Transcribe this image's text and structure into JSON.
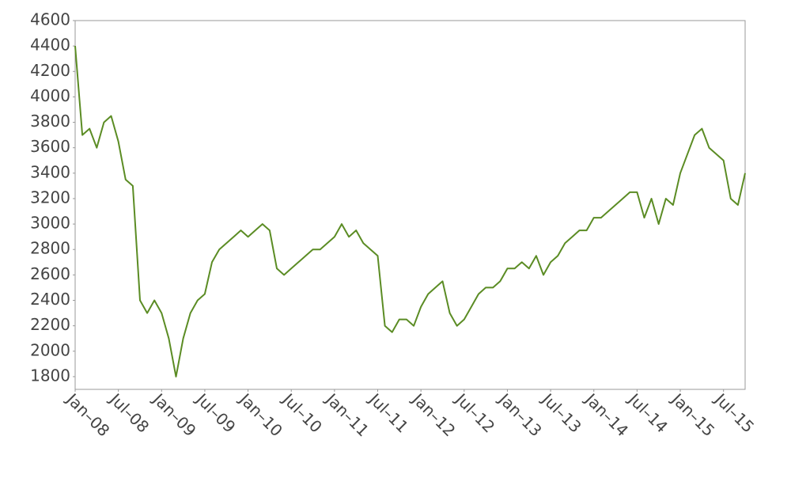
{
  "chart_data": {
    "type": "line",
    "x": [
      "2008-01",
      "2008-02",
      "2008-03",
      "2008-04",
      "2008-05",
      "2008-06",
      "2008-07",
      "2008-08",
      "2008-09",
      "2008-10",
      "2008-11",
      "2008-12",
      "2009-01",
      "2009-02",
      "2009-03",
      "2009-04",
      "2009-05",
      "2009-06",
      "2009-07",
      "2009-08",
      "2009-09",
      "2009-10",
      "2009-11",
      "2009-12",
      "2010-01",
      "2010-02",
      "2010-03",
      "2010-04",
      "2010-05",
      "2010-06",
      "2010-07",
      "2010-08",
      "2010-09",
      "2010-10",
      "2010-11",
      "2010-12",
      "2011-01",
      "2011-02",
      "2011-03",
      "2011-04",
      "2011-05",
      "2011-06",
      "2011-07",
      "2011-08",
      "2011-09",
      "2011-10",
      "2011-11",
      "2011-12",
      "2012-01",
      "2012-02",
      "2012-03",
      "2012-04",
      "2012-05",
      "2012-06",
      "2012-07",
      "2012-08",
      "2012-09",
      "2012-10",
      "2012-11",
      "2012-12",
      "2013-01",
      "2013-02",
      "2013-03",
      "2013-04",
      "2013-05",
      "2013-06",
      "2013-07",
      "2013-08",
      "2013-09",
      "2013-10",
      "2013-11",
      "2013-12",
      "2014-01",
      "2014-02",
      "2014-03",
      "2014-04",
      "2014-05",
      "2014-06",
      "2014-07",
      "2014-08",
      "2014-09",
      "2014-10",
      "2014-11",
      "2014-12",
      "2015-01",
      "2015-02",
      "2015-03",
      "2015-04",
      "2015-05",
      "2015-06",
      "2015-07",
      "2015-08",
      "2015-09",
      "2015-10"
    ],
    "series": [
      {
        "color": "#5b8c24",
        "values": [
          4400,
          3700,
          3750,
          3600,
          3800,
          3850,
          3650,
          3350,
          3300,
          2400,
          2300,
          2400,
          2300,
          2100,
          1800,
          2100,
          2300,
          2400,
          2450,
          2700,
          2800,
          2850,
          2900,
          2950,
          2900,
          2950,
          3000,
          2950,
          2650,
          2600,
          2650,
          2700,
          2750,
          2800,
          2800,
          2850,
          2900,
          3000,
          2900,
          2950,
          2850,
          2800,
          2750,
          2200,
          2150,
          2250,
          2250,
          2200,
          2350,
          2450,
          2500,
          2550,
          2300,
          2200,
          2250,
          2350,
          2450,
          2500,
          2500,
          2550,
          2650,
          2650,
          2700,
          2650,
          2750,
          2600,
          2700,
          2750,
          2850,
          2900,
          2950,
          2950,
          3050,
          3050,
          3100,
          3150,
          3200,
          3250,
          3250,
          3050,
          3200,
          3000,
          3200,
          3150,
          3400,
          3550,
          3700,
          3750,
          3600,
          3550,
          3500,
          3200,
          3150,
          3400
        ]
      }
    ],
    "xlim": [
      "2008-01",
      "2015-10"
    ],
    "xticks": [
      {
        "value": "2008-01",
        "label": "Jan–08"
      },
      {
        "value": "2008-07",
        "label": "Jul–08"
      },
      {
        "value": "2009-01",
        "label": "Jan–09"
      },
      {
        "value": "2009-07",
        "label": "Jul–09"
      },
      {
        "value": "2010-01",
        "label": "Jan–10"
      },
      {
        "value": "2010-07",
        "label": "Jul–10"
      },
      {
        "value": "2011-01",
        "label": "Jan–11"
      },
      {
        "value": "2011-07",
        "label": "Jul–11"
      },
      {
        "value": "2012-01",
        "label": "Jan–12"
      },
      {
        "value": "2012-07",
        "label": "Jul–12"
      },
      {
        "value": "2013-01",
        "label": "Jan–13"
      },
      {
        "value": "2013-07",
        "label": "Jul–13"
      },
      {
        "value": "2014-01",
        "label": "Jan–14"
      },
      {
        "value": "2014-07",
        "label": "Jul–14"
      },
      {
        "value": "2015-01",
        "label": "Jan–15"
      },
      {
        "value": "2015-07",
        "label": "Jul–15"
      }
    ],
    "ylim": [
      1700,
      4600
    ],
    "yticks": [
      1800,
      2000,
      2200,
      2400,
      2600,
      2800,
      3000,
      3200,
      3400,
      3600,
      3800,
      4000,
      4200,
      4400,
      4600
    ],
    "grid": false
  }
}
